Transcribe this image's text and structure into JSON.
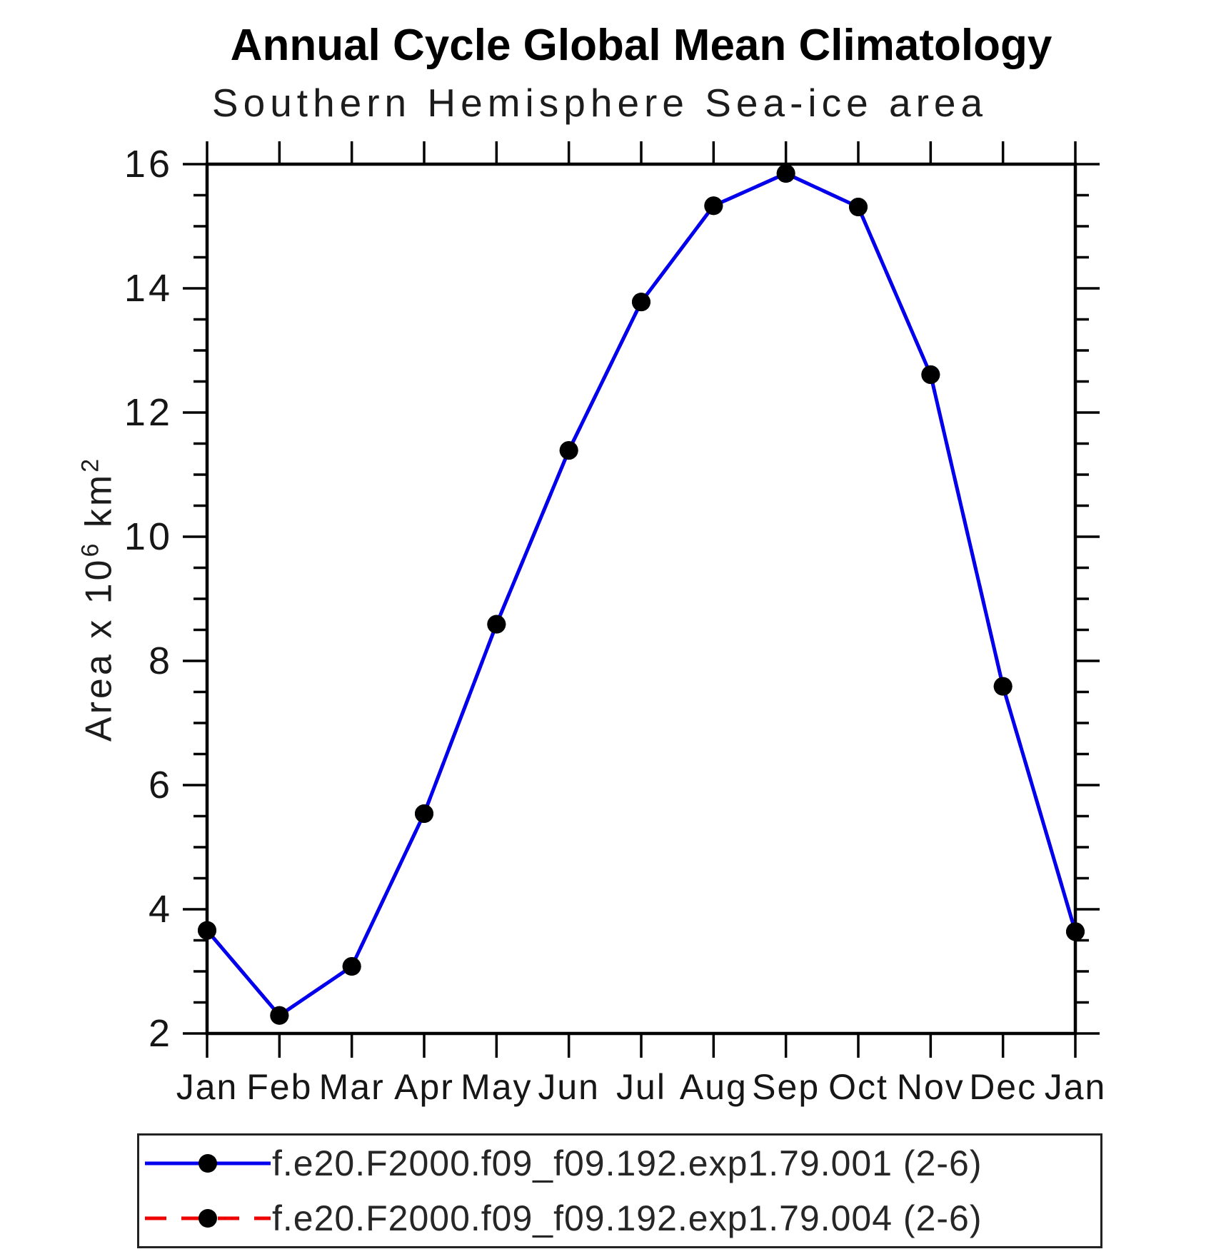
{
  "page": {
    "background": "#ffffff"
  },
  "chart_data": {
    "type": "line",
    "title": "Annual Cycle Global Mean Climatology",
    "subtitle": "Southern Hemisphere Sea-ice area",
    "ylabel": "Area x 10^6 km^2",
    "ylabel_parts": [
      "Area x 10",
      "6",
      " km",
      "2"
    ],
    "categories": [
      "Jan",
      "Feb",
      "Mar",
      "Apr",
      "May",
      "Jun",
      "Jul",
      "Aug",
      "Sep",
      "Oct",
      "Nov",
      "Dec",
      "Jan"
    ],
    "ylim": [
      2,
      16
    ],
    "yticks": [
      2,
      4,
      6,
      8,
      10,
      12,
      14,
      16
    ],
    "minor_tick_step": 0.5,
    "grid": "off",
    "legend_position": "bottom",
    "frame_color": "#000000",
    "series": [
      {
        "name": "f.e20.F2000.f09_f09.192.exp1.79.001 (2-6)",
        "color": "#0000ee",
        "style": "solid",
        "marker": "circle",
        "marker_color": "#000000",
        "values": [
          3.66,
          2.29,
          3.08,
          5.54,
          8.59,
          11.39,
          13.78,
          15.33,
          15.85,
          15.31,
          12.61,
          7.59,
          3.64
        ]
      },
      {
        "name": "f.e20.F2000.f09_f09.192.exp1.79.004 (2-6)",
        "color": "#ee0000",
        "style": "dashed",
        "marker": "circle",
        "marker_color": "#000000",
        "note": "curve coincides with series 001 and is hidden beneath it",
        "values": [
          3.66,
          2.29,
          3.08,
          5.54,
          8.59,
          11.39,
          13.78,
          15.33,
          15.85,
          15.31,
          12.61,
          7.59,
          3.64
        ]
      }
    ]
  }
}
